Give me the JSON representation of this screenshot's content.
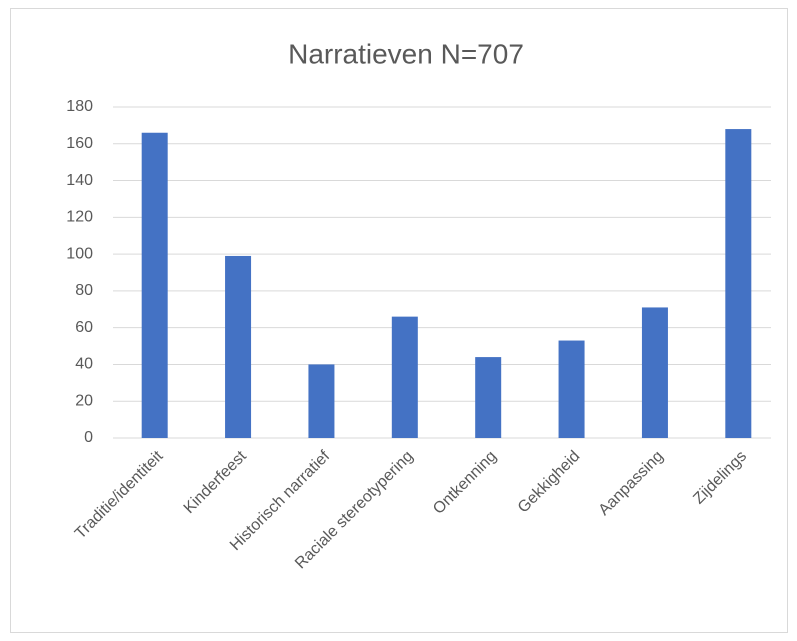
{
  "chart_data": {
    "type": "bar",
    "title": "Narratieven N=707",
    "categories": [
      "Traditie/identiteit",
      "Kinderfeest",
      "Historisch narratief",
      "Raciale stereotypering",
      "Ontkenning",
      "Gekkigheid",
      "Aanpassing",
      "Zijdelings"
    ],
    "values": [
      166,
      99,
      40,
      66,
      44,
      53,
      71,
      168
    ],
    "color": "#4472c4",
    "ylim": [
      0,
      180
    ],
    "yticks": [
      0,
      20,
      40,
      60,
      80,
      100,
      120,
      140,
      160,
      180
    ],
    "grid": true
  }
}
